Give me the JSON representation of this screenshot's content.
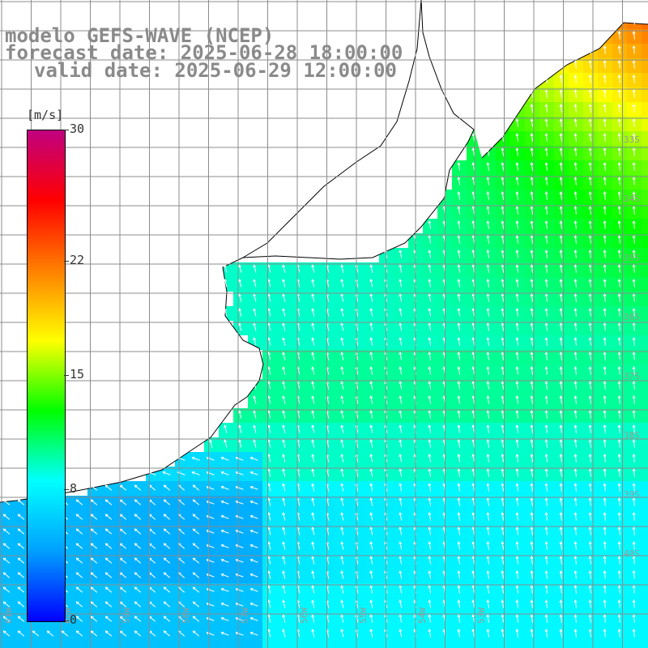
{
  "title": {
    "line1": "modelo GEFS-WAVE (NCEP)",
    "line2": "forecast date: 2025-06-28 18:00:00",
    "line3": "valid date: 2025-06-29 12:00:00"
  },
  "colorbar": {
    "unit": "[m/s]",
    "min": 0,
    "max": 30,
    "ticks": [
      {
        "value": 30,
        "label": "30"
      },
      {
        "value": 22,
        "label": "22"
      },
      {
        "value": 15,
        "label": "15"
      },
      {
        "value": 8,
        "label": "8"
      },
      {
        "value": 0,
        "label": "0"
      }
    ],
    "stops": [
      "#0000ff",
      "#00a0ff",
      "#00ffff",
      "#00ff00",
      "#ffff00",
      "#ff8000",
      "#ff0000",
      "#c00080"
    ]
  },
  "map": {
    "lat_labels": [
      "33S",
      "34S",
      "35S",
      "36S",
      "37S",
      "38S",
      "39S",
      "40S"
    ],
    "lon_labels": [
      "61W",
      "60W",
      "59W",
      "58W",
      "57W",
      "56W",
      "55W",
      "54W",
      "53W"
    ],
    "grid_color": "#8c8c8c",
    "coast_color": "#000000",
    "arrow_color": "#ffffff"
  }
}
